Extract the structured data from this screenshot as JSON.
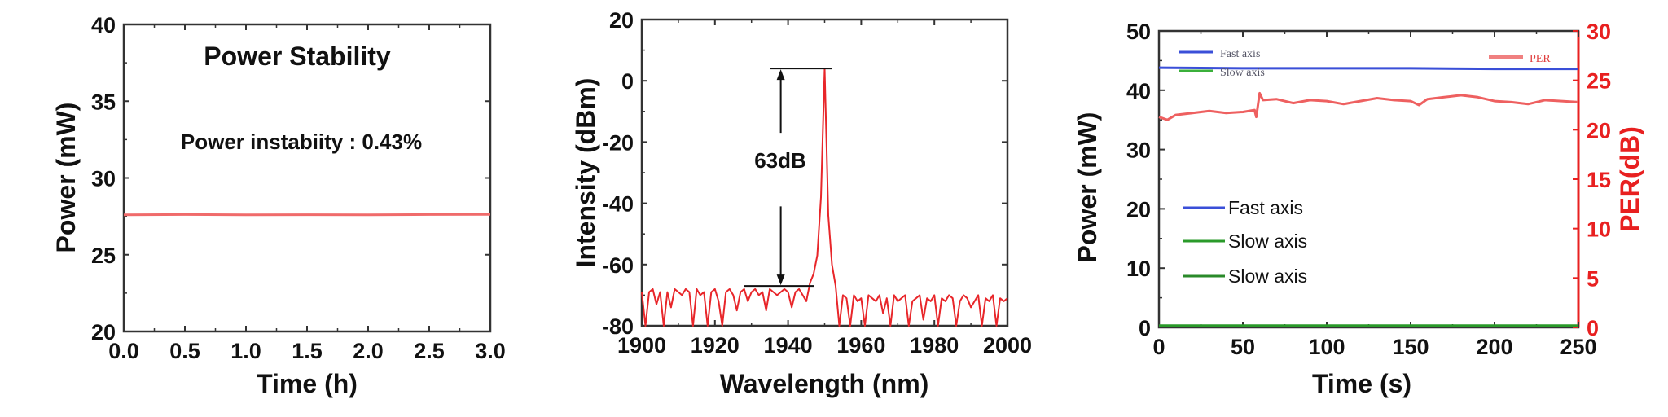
{
  "chart_data": [
    {
      "type": "line",
      "title": "Power Stability",
      "annotation": "Power instabiity : 0.43%",
      "xlabel": "Time (h)",
      "ylabel": "Power (mW)",
      "xlim": [
        0,
        3
      ],
      "ylim": [
        20,
        40
      ],
      "xticks": [
        "0.0",
        "0.5",
        "1.0",
        "1.5",
        "2.0",
        "2.5",
        "3.0"
      ],
      "yticks": [
        "20",
        "25",
        "30",
        "35",
        "40"
      ],
      "grid": false,
      "series": [
        {
          "color": "#f06b6b",
          "x": [
            0,
            0.5,
            1.0,
            1.5,
            2.0,
            2.5,
            3.0
          ],
          "y": [
            27.6,
            27.62,
            27.6,
            27.61,
            27.6,
            27.62,
            27.63
          ]
        }
      ]
    },
    {
      "type": "line",
      "xlabel": "Wavelength (nm)",
      "ylabel": "Intensity (dBm)",
      "xlim": [
        1900,
        2000
      ],
      "ylim": [
        -80,
        20
      ],
      "xticks": [
        "1900",
        "1920",
        "1940",
        "1960",
        "1980",
        "2000"
      ],
      "yticks": [
        "-80",
        "-60",
        "-40",
        "-20",
        "0",
        "20"
      ],
      "grid": false,
      "annotation": "63dB",
      "peak": {
        "wavelength": 1950,
        "intensity": 4
      },
      "noise_floor": -67,
      "series": [
        {
          "color": "#e8262a",
          "x_start": 1900,
          "x_step": 1,
          "y": [
            -69,
            -80,
            -69,
            -68,
            -73,
            -69,
            -80,
            -69,
            -74,
            -68,
            -69,
            -70,
            -68,
            -69,
            -80,
            -68,
            -70,
            -69,
            -80,
            -69,
            -68,
            -72,
            -80,
            -69,
            -68,
            -70,
            -75,
            -69,
            -68,
            -72,
            -69,
            -68,
            -70,
            -69,
            -75,
            -68,
            -69,
            -70,
            -69,
            -68,
            -69,
            -74,
            -69,
            -68,
            -70,
            -72,
            -66,
            -63,
            -57,
            -38,
            4,
            -44,
            -60,
            -67,
            -80,
            -70,
            -71,
            -80,
            -70,
            -72,
            -71,
            -80,
            -70,
            -71,
            -72,
            -70,
            -76,
            -71,
            -80,
            -70,
            -72,
            -71,
            -70,
            -80,
            -72,
            -71,
            -70,
            -78,
            -71,
            -72,
            -70,
            -80,
            -71,
            -72,
            -70,
            -71,
            -80,
            -72,
            -70,
            -71,
            -74,
            -72,
            -70,
            -80,
            -71,
            -72,
            -70,
            -80,
            -71,
            -72,
            -71
          ]
        }
      ]
    },
    {
      "type": "line",
      "xlabel": "Time (s)",
      "ylabel": "Power (mW)",
      "y2label": "PER(dB)",
      "xlim": [
        0,
        250
      ],
      "ylim": [
        0,
        50
      ],
      "y2lim": [
        0,
        30
      ],
      "xticks": [
        "0",
        "50",
        "100",
        "150",
        "200",
        "250"
      ],
      "yticks": [
        "0",
        "10",
        "20",
        "30",
        "40",
        "50"
      ],
      "y2ticks": [
        "0",
        "5",
        "10",
        "15",
        "20",
        "25",
        "30"
      ],
      "y2color": "#e82020",
      "grid": false,
      "legend_top": {
        "items": [
          "Fast axis",
          "Slow axis",
          "PER"
        ]
      },
      "legend": {
        "placement": "center-left",
        "items": [
          {
            "label": "Fast axis",
            "color": "#3a4fd8"
          },
          {
            "label": "Slow axis",
            "color": "#2a9a2a"
          },
          {
            "label": "Slow axis",
            "color": "#2a8a2a"
          }
        ]
      },
      "series": [
        {
          "name": "Fast axis",
          "axis": "left",
          "color": "#3a4fd8",
          "x": [
            0,
            50,
            100,
            150,
            200,
            250
          ],
          "y": [
            43.8,
            43.7,
            43.7,
            43.7,
            43.6,
            43.6
          ]
        },
        {
          "name": "Slow axis",
          "axis": "left",
          "color": "#2a9a2a",
          "x": [
            0,
            50,
            100,
            150,
            200,
            250
          ],
          "y": [
            0.3,
            0.3,
            0.3,
            0.3,
            0.3,
            0.3
          ]
        },
        {
          "name": "PER",
          "axis": "right",
          "color": "#ee6060",
          "x": [
            0,
            5,
            10,
            20,
            30,
            40,
            50,
            57,
            58,
            60,
            62,
            70,
            80,
            90,
            100,
            110,
            120,
            130,
            140,
            150,
            155,
            160,
            170,
            180,
            190,
            200,
            210,
            220,
            230,
            240,
            250
          ],
          "y": [
            21.3,
            21.0,
            21.5,
            21.7,
            21.9,
            21.7,
            21.8,
            22.0,
            21.3,
            23.7,
            23.0,
            23.1,
            22.7,
            23.0,
            22.9,
            22.6,
            22.9,
            23.2,
            23.0,
            22.9,
            22.5,
            23.1,
            23.3,
            23.5,
            23.3,
            22.9,
            22.8,
            22.6,
            23.0,
            22.9,
            22.8
          ]
        }
      ]
    }
  ]
}
